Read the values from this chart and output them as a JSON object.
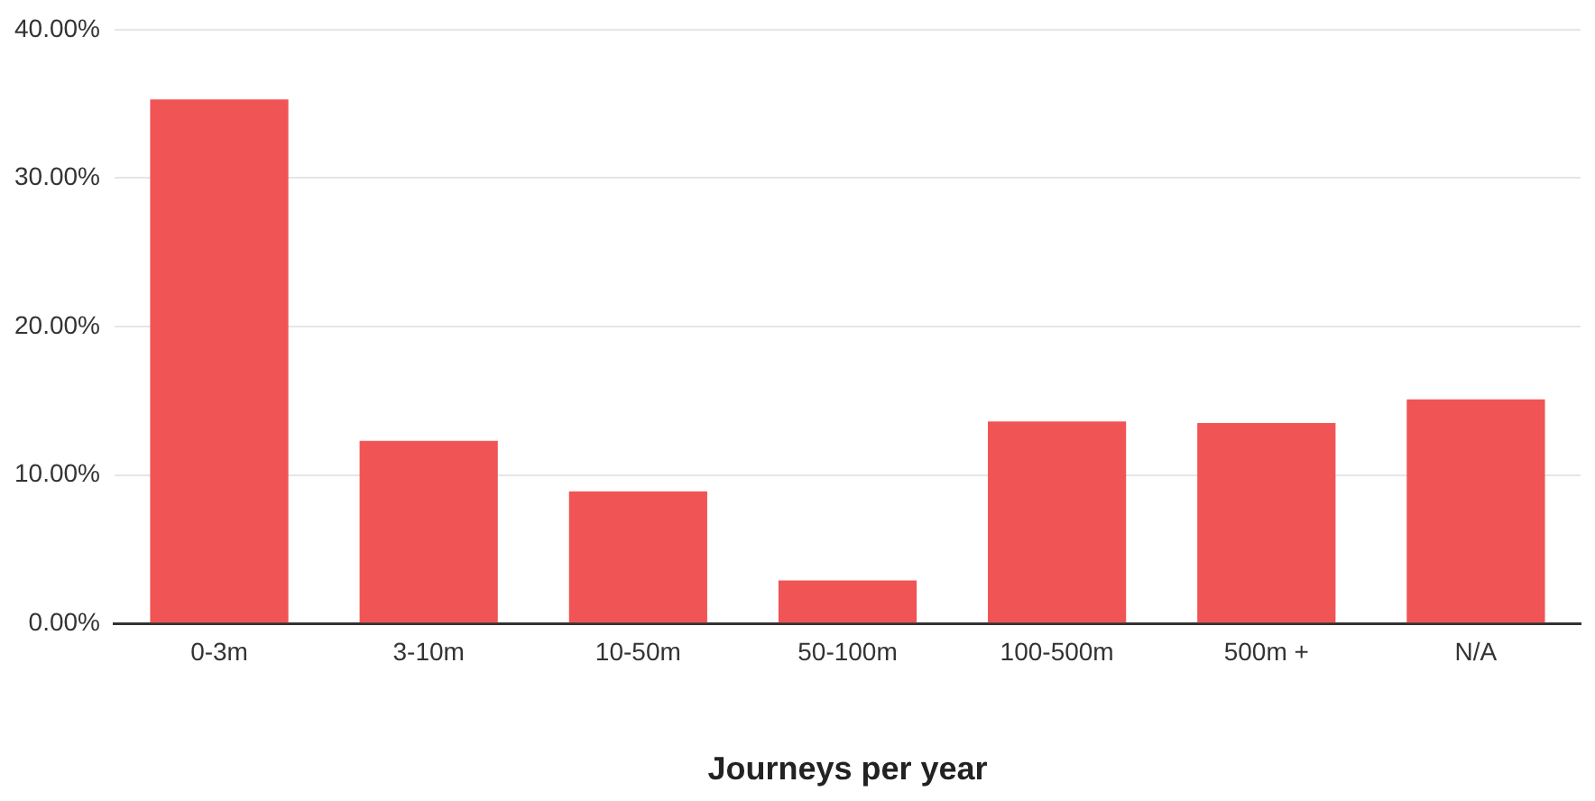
{
  "chart_data": {
    "type": "bar",
    "xlabel": "Journeys per year",
    "categories": [
      "0-3m",
      "3-10m",
      "10-50m",
      "50-100m",
      "100-500m",
      "500m +",
      "N/A"
    ],
    "values": [
      35.3,
      12.3,
      8.9,
      2.9,
      13.6,
      13.5,
      15.1
    ],
    "color": "#f05454",
    "ylim": [
      0,
      40
    ],
    "yticks": [
      {
        "value": 0,
        "label": "0.00%"
      },
      {
        "value": 10,
        "label": "10.00%"
      },
      {
        "value": 20,
        "label": "20.00%"
      },
      {
        "value": 30,
        "label": "30.00%"
      },
      {
        "value": 40,
        "label": "40.00%"
      }
    ],
    "grid": "y",
    "legend": false
  }
}
